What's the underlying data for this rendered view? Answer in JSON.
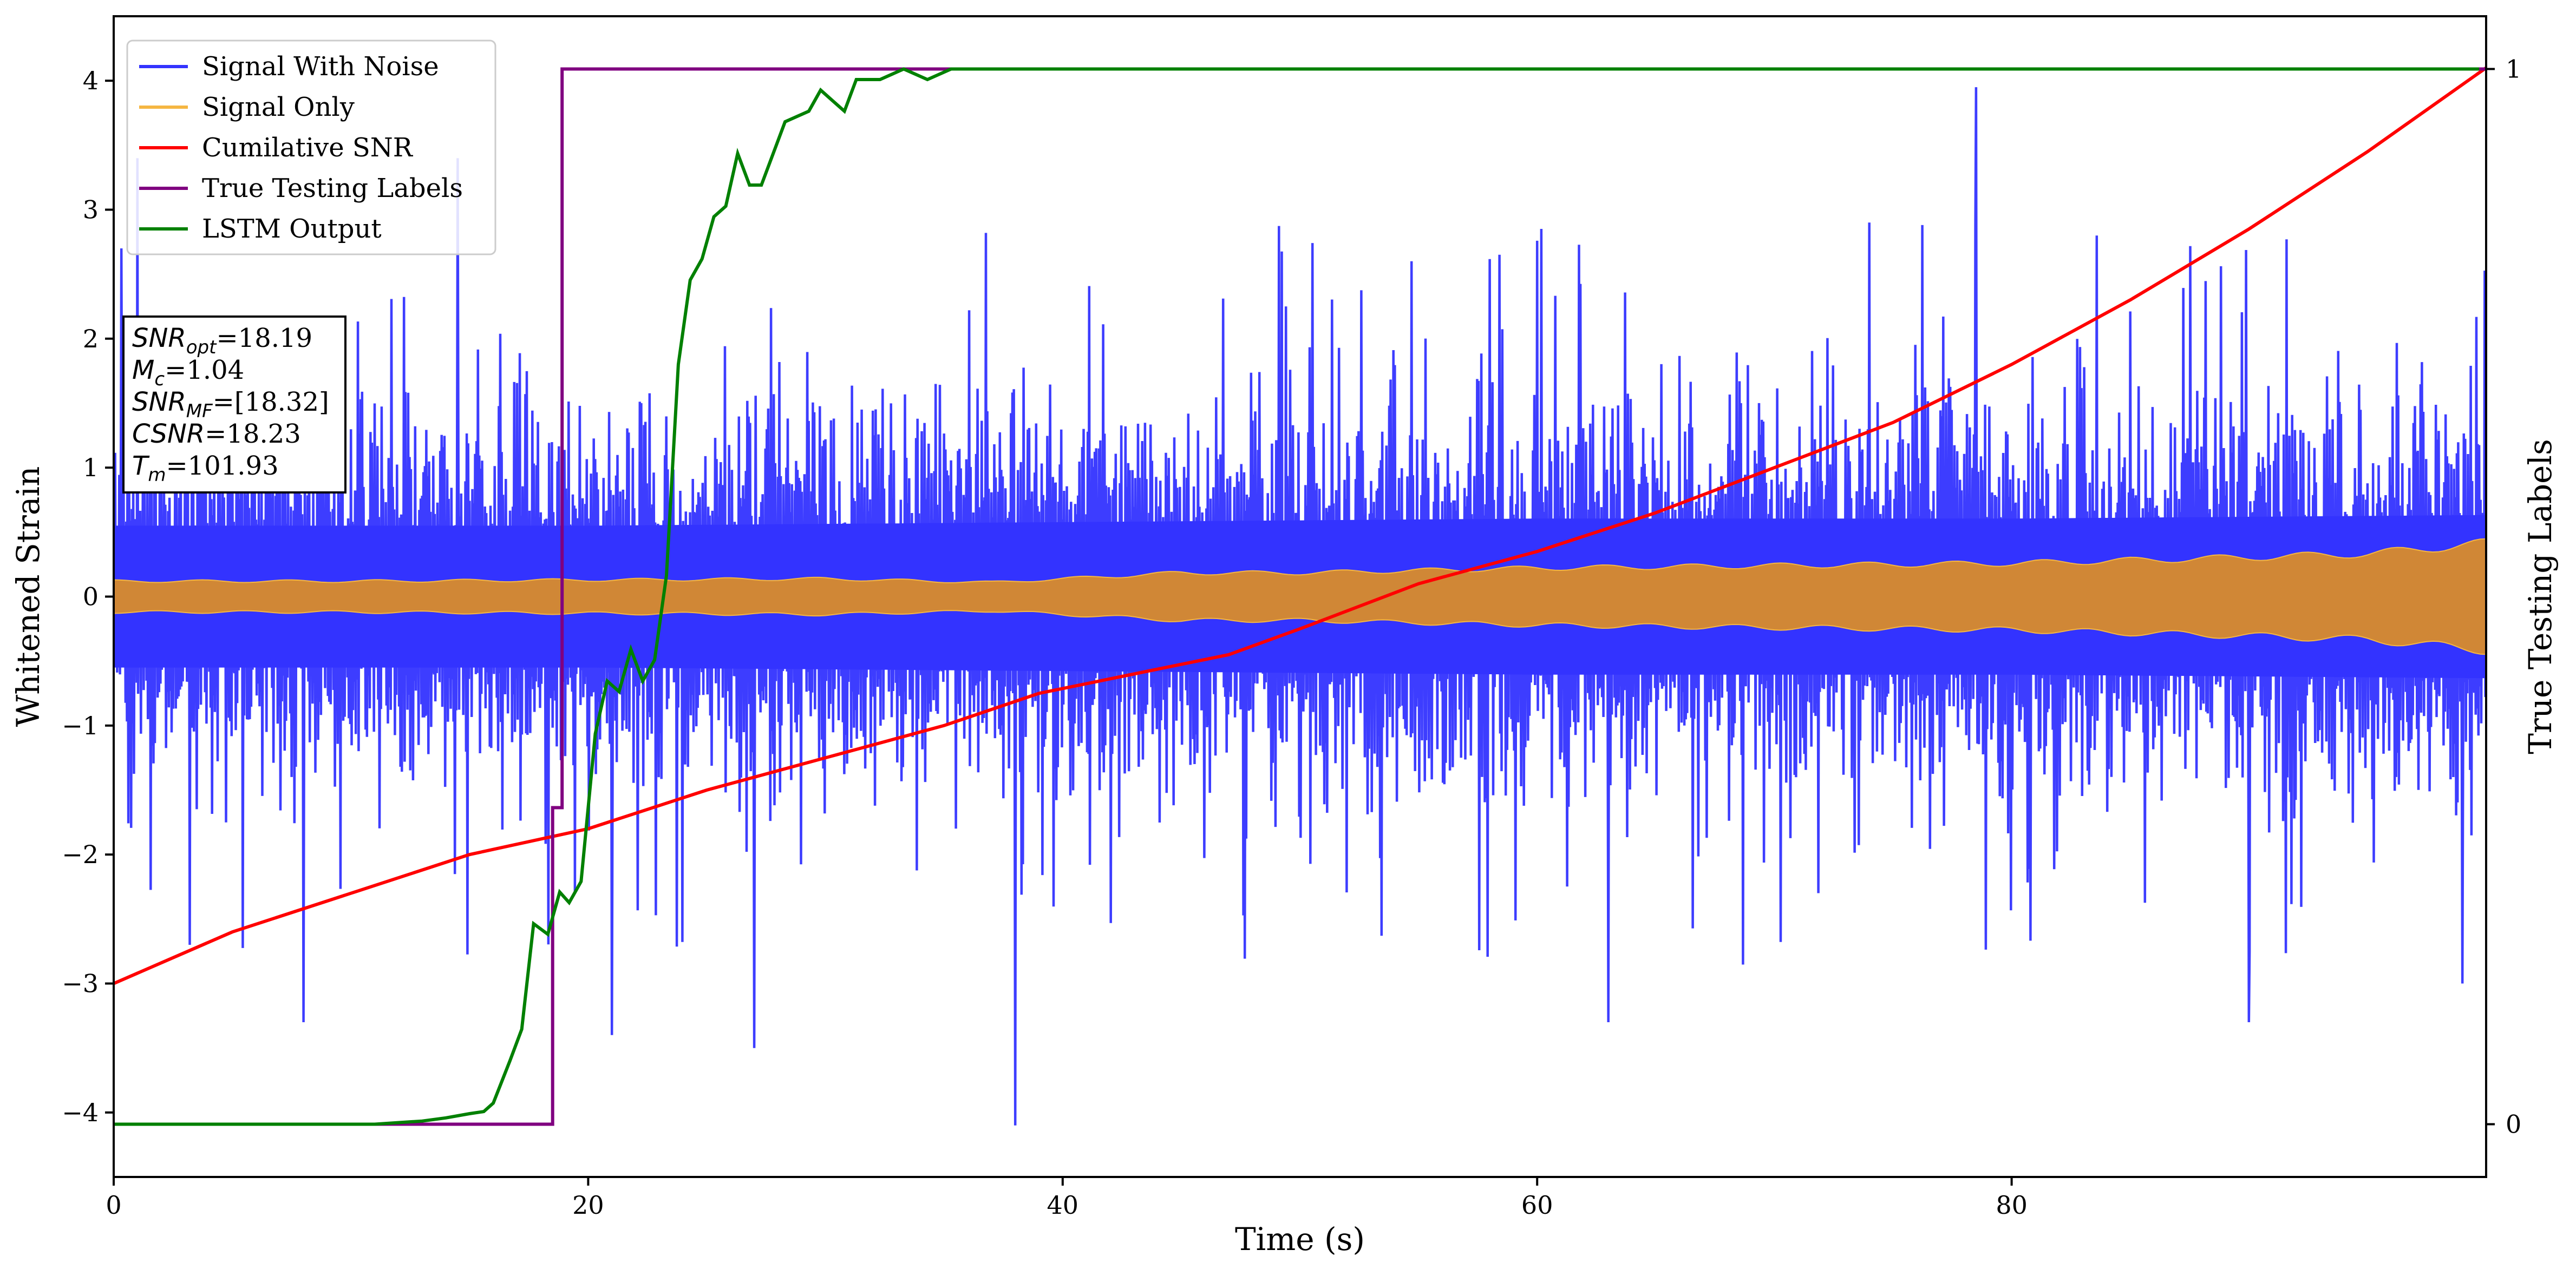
{
  "chart_data": {
    "type": "line",
    "xlabel": "Time (s)",
    "ylabel": "Whitened Strain",
    "ylabel_right": "True Testing Labels",
    "xlim": [
      0,
      100
    ],
    "ylim": [
      -4.5,
      4.5
    ],
    "ylim_right": [
      -0.05,
      1.05
    ],
    "x_ticks": [
      0,
      20,
      40,
      60,
      80
    ],
    "y_ticks": [
      -4,
      -3,
      -2,
      -1,
      0,
      1,
      2,
      3,
      4
    ],
    "y_ticks_right": [
      0,
      1
    ],
    "grid": false,
    "legend_position": "top-left",
    "series": [
      {
        "name": "Signal With Noise",
        "color": "#3333ff",
        "axis": "left",
        "description_noise_band_env": [
          [
            0,
            1.0
          ],
          [
            20,
            1.0
          ],
          [
            40,
            1.05
          ],
          [
            60,
            1.1
          ],
          [
            80,
            1.1
          ],
          [
            100,
            1.15
          ]
        ],
        "extreme_points": [
          [
            0.3,
            2.7
          ],
          [
            1.0,
            3.4
          ],
          [
            3.2,
            -2.7
          ],
          [
            8.0,
            -3.3
          ],
          [
            14.5,
            3.4
          ],
          [
            21.0,
            -3.4
          ],
          [
            27.0,
            -3.5
          ],
          [
            38.0,
            -4.1
          ],
          [
            54.7,
            2.6
          ],
          [
            63.0,
            -3.3
          ],
          [
            74.0,
            2.9
          ],
          [
            78.5,
            3.95
          ],
          [
            90.0,
            -3.3
          ],
          [
            99.0,
            -3.0
          ]
        ]
      },
      {
        "name": "Signal Only",
        "color": "#f5b642",
        "axis": "left",
        "envelope": [
          [
            0,
            0.13
          ],
          [
            10,
            0.13
          ],
          [
            20,
            0.14
          ],
          [
            30,
            0.15
          ],
          [
            37,
            0.12
          ],
          [
            45,
            0.2
          ],
          [
            50,
            0.2
          ],
          [
            55,
            0.22
          ],
          [
            60,
            0.24
          ],
          [
            70,
            0.26
          ],
          [
            80,
            0.28
          ],
          [
            90,
            0.33
          ],
          [
            95,
            0.36
          ],
          [
            100,
            0.45
          ]
        ]
      },
      {
        "name": "Cumilative SNR",
        "color": "#ff0000",
        "axis": "left",
        "x": [
          0,
          5,
          10,
          15,
          20,
          25,
          30,
          35,
          39,
          43,
          47,
          50,
          55,
          60,
          65,
          70,
          75,
          80,
          85,
          90,
          95,
          100
        ],
        "y": [
          -3.0,
          -2.6,
          -2.3,
          -2.0,
          -1.8,
          -1.5,
          -1.25,
          -1.0,
          -0.75,
          -0.6,
          -0.45,
          -0.25,
          0.1,
          0.35,
          0.65,
          1.0,
          1.35,
          1.8,
          2.3,
          2.85,
          3.45,
          4.1
        ]
      },
      {
        "name": "True Testing Labels",
        "color": "#800080",
        "axis": "right",
        "x": [
          0,
          18.5,
          18.5,
          18.9,
          18.9,
          100
        ],
        "y": [
          0,
          0,
          0.3,
          0.3,
          1,
          1
        ]
      },
      {
        "name": "LSTM Output",
        "color": "#008000",
        "axis": "right",
        "x": [
          0,
          11,
          13,
          14,
          15,
          15.6,
          16,
          16.7,
          17.2,
          17.7,
          18.3,
          18.8,
          19.2,
          19.7,
          20.3,
          20.8,
          21.3,
          21.8,
          22.3,
          22.8,
          23.3,
          23.8,
          24.3,
          24.8,
          25.3,
          25.8,
          26.3,
          26.8,
          27.3,
          28.3,
          29.3,
          29.8,
          30.3,
          30.8,
          31.3,
          32.3,
          33.3,
          34.3,
          35.3,
          36.3,
          37.3,
          38.3,
          40.3,
          42.3,
          44.3,
          46.3,
          48.3,
          50,
          52,
          54,
          60,
          70,
          80,
          90,
          99.7
        ],
        "y": [
          0,
          0,
          0.003,
          0.006,
          0.01,
          0.012,
          0.02,
          0.06,
          0.09,
          0.19,
          0.18,
          0.22,
          0.21,
          0.23,
          0.37,
          0.42,
          0.41,
          0.45,
          0.42,
          0.44,
          0.52,
          0.72,
          0.8,
          0.82,
          0.86,
          0.87,
          0.92,
          0.89,
          0.89,
          0.95,
          0.96,
          0.98,
          0.97,
          0.96,
          0.99,
          0.99,
          1.0,
          0.99,
          1.0,
          1.0,
          1.0,
          1.0,
          1.0,
          1.0,
          1.0,
          1.0,
          1.0,
          1.0,
          1.0,
          1.0,
          1.0,
          1.0,
          1.0,
          1.0,
          1.0
        ]
      }
    ],
    "annotation": {
      "lines": [
        {
          "var": "SNR",
          "sub": "opt",
          "value": "=18.19"
        },
        {
          "var": "M",
          "sub": "c",
          "value": "=1.04"
        },
        {
          "var": "SNR",
          "sub": "MF",
          "value": "=[18.32]"
        },
        {
          "var": "CSNR",
          "sub": "",
          "value": "=18.23"
        },
        {
          "var": "T",
          "sub": "m",
          "value": "=101.93"
        }
      ]
    }
  }
}
